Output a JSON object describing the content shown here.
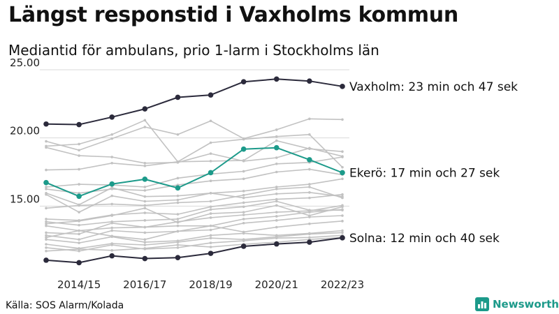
{
  "title": "Längst responstid i Vaxholms kommun",
  "subtitle": "Mediantid för ambulans, prio 1-larm i Stockholms län",
  "source": "Källa: SOS Alarm/Kolada",
  "brand": {
    "name": "Newsworthy",
    "icon": "bar-chart-logo-icon",
    "color": "#1c9a8a"
  },
  "chart_data": {
    "type": "line",
    "x": [
      "2013/14",
      "2014/15",
      "2015/16",
      "2016/17",
      "2017/18",
      "2018/19",
      "2019/20",
      "2020/21",
      "2021/22",
      "2022/23"
    ],
    "x_tick_labels": [
      "2014/15",
      "2016/17",
      "2018/19",
      "2020/21",
      "2022/23"
    ],
    "ylim": [
      10.0,
      25.0
    ],
    "y_ticks": [
      15,
      20,
      25
    ],
    "y_tick_labels": [
      "15.00",
      "20.00",
      "25.00"
    ],
    "grid": "horizontal",
    "highlighted": [
      {
        "name": "Vaxholm",
        "label": "Vaxholm: 23 min och 47 sek",
        "color": "#2b2a3b",
        "values": [
          21.02,
          20.98,
          21.53,
          22.13,
          22.98,
          23.15,
          24.12,
          24.32,
          24.17,
          23.78
        ]
      },
      {
        "name": "Ekerö",
        "label": "Ekerö: 17 min och 27 sek",
        "color": "#1c9a8a",
        "values": [
          16.72,
          15.72,
          16.62,
          16.97,
          16.33,
          17.45,
          19.18,
          19.28,
          18.4,
          17.45
        ]
      },
      {
        "name": "Solna",
        "label": "Solna: 12 min och 40 sek",
        "color": "#2b2a3b",
        "values": [
          11.03,
          10.85,
          11.35,
          11.15,
          11.22,
          11.53,
          12.05,
          12.22,
          12.35,
          12.67
        ]
      }
    ],
    "background_series_color": "#c2c2c2",
    "background_series": [
      [
        19.75,
        19.1,
        19.95,
        20.8,
        20.25,
        21.25,
        19.95,
        20.6,
        21.4,
        21.35
      ],
      [
        19.4,
        19.55,
        20.25,
        21.3,
        18.25,
        19.65,
        19.9,
        20.1,
        20.25,
        17.85
      ],
      [
        19.3,
        18.7,
        18.6,
        18.15,
        18.2,
        18.85,
        18.3,
        18.55,
        19.25,
        18.65
      ],
      [
        17.65,
        17.7,
        18.15,
        17.95,
        18.25,
        18.3,
        18.35,
        19.8,
        19.2,
        19.0
      ],
      [
        16.4,
        16.6,
        16.55,
        16.4,
        17.05,
        17.35,
        17.55,
        18.1,
        18.2,
        18.6
      ],
      [
        16.25,
        15.95,
        16.25,
        16.15,
        16.55,
        16.85,
        17.0,
        17.5,
        17.7,
        17.3
      ],
      [
        15.95,
        15.1,
        16.35,
        15.7,
        15.75,
        15.95,
        16.1,
        16.4,
        16.6,
        17.0
      ],
      [
        15.85,
        14.55,
        15.75,
        15.35,
        15.45,
        15.95,
        15.6,
        15.9,
        16.0,
        15.7
      ],
      [
        14.85,
        15.05,
        15.15,
        15.05,
        15.25,
        15.35,
        15.8,
        16.25,
        16.4,
        15.6
      ],
      [
        14.05,
        13.95,
        14.35,
        14.5,
        14.4,
        14.95,
        15.25,
        15.5,
        15.6,
        15.85
      ],
      [
        13.85,
        13.6,
        13.85,
        13.95,
        14.05,
        14.75,
        14.95,
        15.35,
        14.7,
        14.7
      ],
      [
        13.7,
        13.9,
        14.3,
        14.85,
        13.8,
        14.45,
        14.55,
        15.05,
        14.3,
        14.95
      ],
      [
        13.55,
        13.2,
        13.4,
        13.45,
        13.85,
        14.15,
        14.35,
        14.55,
        14.65,
        15.05
      ],
      [
        13.05,
        12.95,
        13.75,
        13.45,
        13.55,
        13.55,
        14.05,
        14.25,
        14.55,
        14.75
      ],
      [
        12.85,
        12.55,
        13.2,
        13.05,
        13.15,
        13.25,
        13.75,
        13.95,
        14.2,
        14.3
      ],
      [
        12.7,
        13.2,
        12.8,
        12.55,
        13.15,
        13.55,
        13.1,
        13.45,
        13.7,
        13.9
      ],
      [
        12.55,
        12.3,
        12.75,
        12.35,
        12.45,
        12.85,
        13.0,
        12.85,
        13.0,
        13.2
      ],
      [
        12.2,
        11.9,
        12.25,
        12.15,
        12.35,
        12.65,
        12.55,
        12.75,
        12.95,
        13.05
      ],
      [
        11.95,
        11.7,
        12.15,
        11.85,
        11.95,
        12.3,
        12.45,
        12.65,
        12.7,
        12.85
      ],
      [
        11.7,
        11.85,
        11.75,
        11.9,
        12.15,
        12.0,
        12.2,
        12.35,
        12.55,
        12.7
      ]
    ]
  }
}
